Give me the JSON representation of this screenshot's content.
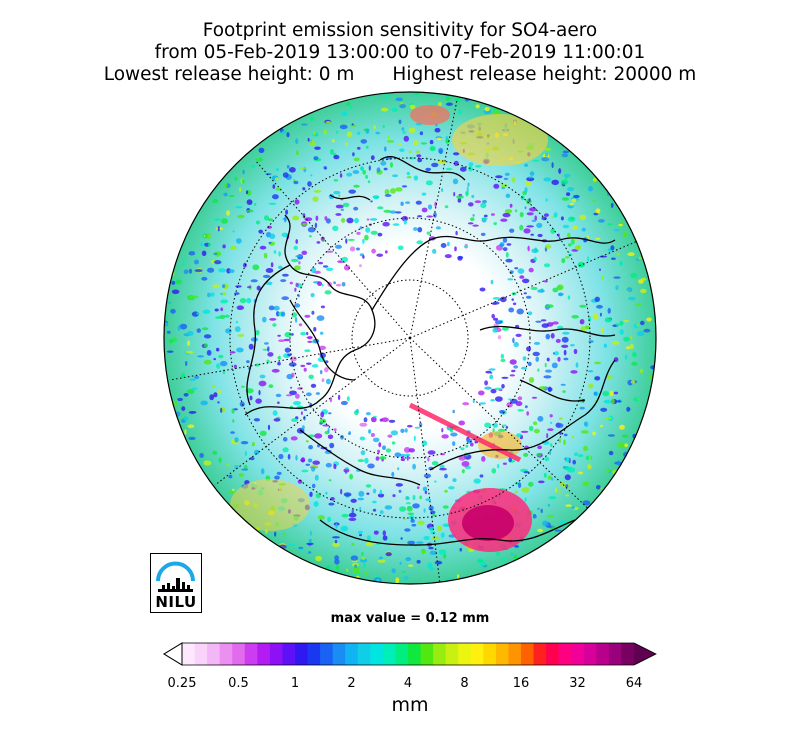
{
  "title": {
    "line1": "Footprint emission sensitivity for SO4-aero",
    "line2": "from 05-Feb-2019 13:00:00 to 07-Feb-2019 11:00:01",
    "lowest": "Lowest release height: 0 m",
    "highest": "Highest release height: 20000 m"
  },
  "max_value": "max value = 0.12 mm",
  "logo": {
    "text": "NILU"
  },
  "colorbar": {
    "unit": "mm",
    "ticks": [
      "0.25",
      "0.5",
      "1",
      "2",
      "4",
      "8",
      "16",
      "32",
      "64"
    ],
    "colors": [
      "#fde8fd",
      "#f9d3f9",
      "#f3b6f6",
      "#eb8ff1",
      "#e26aec",
      "#cc3cf0",
      "#b21cf2",
      "#8e10f5",
      "#5e10f7",
      "#2f18f0",
      "#1a38f0",
      "#1a62f4",
      "#1a8df5",
      "#12b3f2",
      "#10cde8",
      "#00e5e0",
      "#00eeb8",
      "#00ee80",
      "#10e840",
      "#50e810",
      "#98ec10",
      "#c8f010",
      "#ecf510",
      "#fff010",
      "#ffd800",
      "#ffb800",
      "#ff9400",
      "#ff6000",
      "#ff2020",
      "#ff0050",
      "#ff0080",
      "#f00098",
      "#d8009a",
      "#b8008c",
      "#98007c",
      "#780060"
    ],
    "over_color": "#600050",
    "under_color": "#ffffff"
  }
}
